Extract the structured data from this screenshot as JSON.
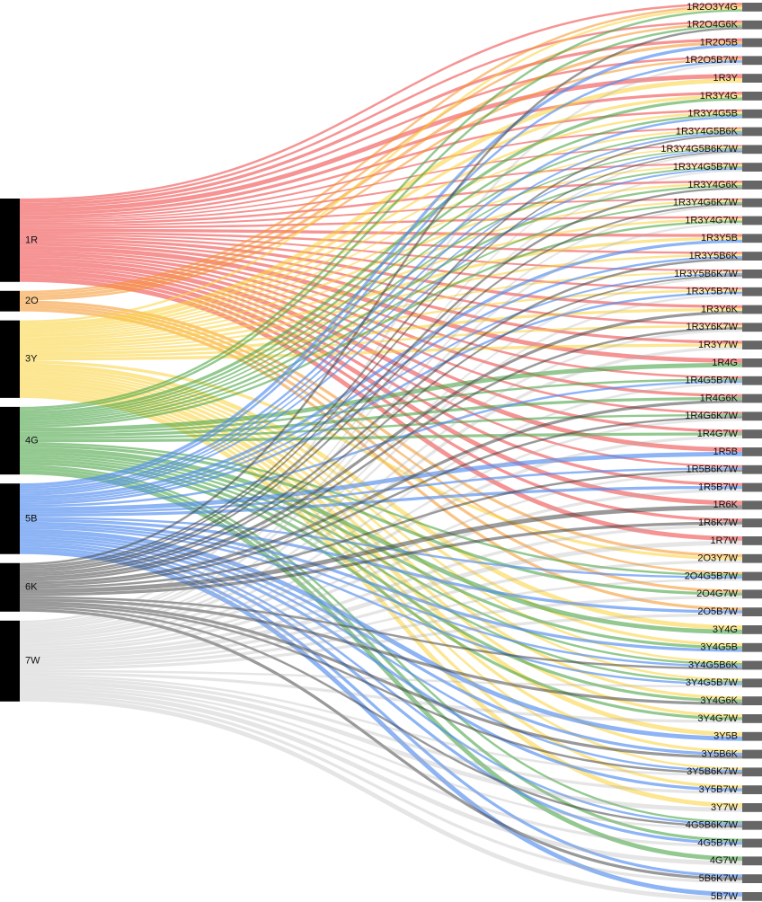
{
  "chart_data": {
    "type": "sankey",
    "title": "",
    "orientation": "horizontal",
    "background": "#ffffff",
    "legend_position": "none",
    "grid": false,
    "sources": [
      {
        "id": "1R",
        "label": "1R",
        "flow_color": "rgba(240,75,75,0.6)",
        "solid_hex": "#f04b4b"
      },
      {
        "id": "2O",
        "label": "2O",
        "flow_color": "rgba(245,145,35,0.55)",
        "solid_hex": "#f59123"
      },
      {
        "id": "3Y",
        "label": "3Y",
        "flow_color": "rgba(250,210,55,0.55)",
        "solid_hex": "#fad237"
      },
      {
        "id": "4G",
        "label": "4G",
        "flow_color": "rgba(75,165,70,0.6)",
        "solid_hex": "#4ba546"
      },
      {
        "id": "5B",
        "label": "5B",
        "flow_color": "rgba(80,140,240,0.65)",
        "solid_hex": "#508cf0"
      },
      {
        "id": "6K",
        "label": "6K",
        "flow_color": "rgba(70,70,70,0.55)",
        "solid_hex": "#464646"
      },
      {
        "id": "7W",
        "label": "7W",
        "flow_color": "rgba(170,170,170,0.3)",
        "solid_hex": "#aaaaaa"
      }
    ],
    "targets": [
      "1R2O3Y4G",
      "1R2O4G6K",
      "1R2O5B",
      "1R2O5B7W",
      "1R3Y",
      "1R3Y4G",
      "1R3Y4G5B",
      "1R3Y4G5B6K",
      "1R3Y4G5B6K7W",
      "1R3Y4G5B7W",
      "1R3Y4G6K",
      "1R3Y4G6K7W",
      "1R3Y4G7W",
      "1R3Y5B",
      "1R3Y5B6K",
      "1R3Y5B6K7W",
      "1R3Y5B7W",
      "1R3Y6K",
      "1R3Y6K7W",
      "1R3Y7W",
      "1R4G",
      "1R4G5B7W",
      "1R4G6K",
      "1R4G6K7W",
      "1R4G7W",
      "1R5B",
      "1R5B6K7W",
      "1R5B7W",
      "1R6K",
      "1R6K7W",
      "1R7W",
      "2O3Y7W",
      "2O4G5B7W",
      "2O4G7W",
      "2O5B7W",
      "3Y4G",
      "3Y4G5B",
      "3Y4G5B6K",
      "3Y4G5B7W",
      "3Y4G6K",
      "3Y4G7W",
      "3Y5B",
      "3Y5B6K",
      "3Y5B6K7W",
      "3Y5B7W",
      "3Y7W",
      "4G5B6K7W",
      "4G5B7W",
      "4G7W",
      "5B6K7W",
      "5B7W"
    ],
    "link_rule": "Each target node's label is the concatenation of its member source ids (2 chars each). A target made of k sources receives one flow of value 1/k from each member source, stacked in label order; every target node has total value 1.",
    "target_total_value": 1,
    "node_colors": {
      "left": "#000000",
      "right": "#666666"
    },
    "label_color": "#111111"
  }
}
